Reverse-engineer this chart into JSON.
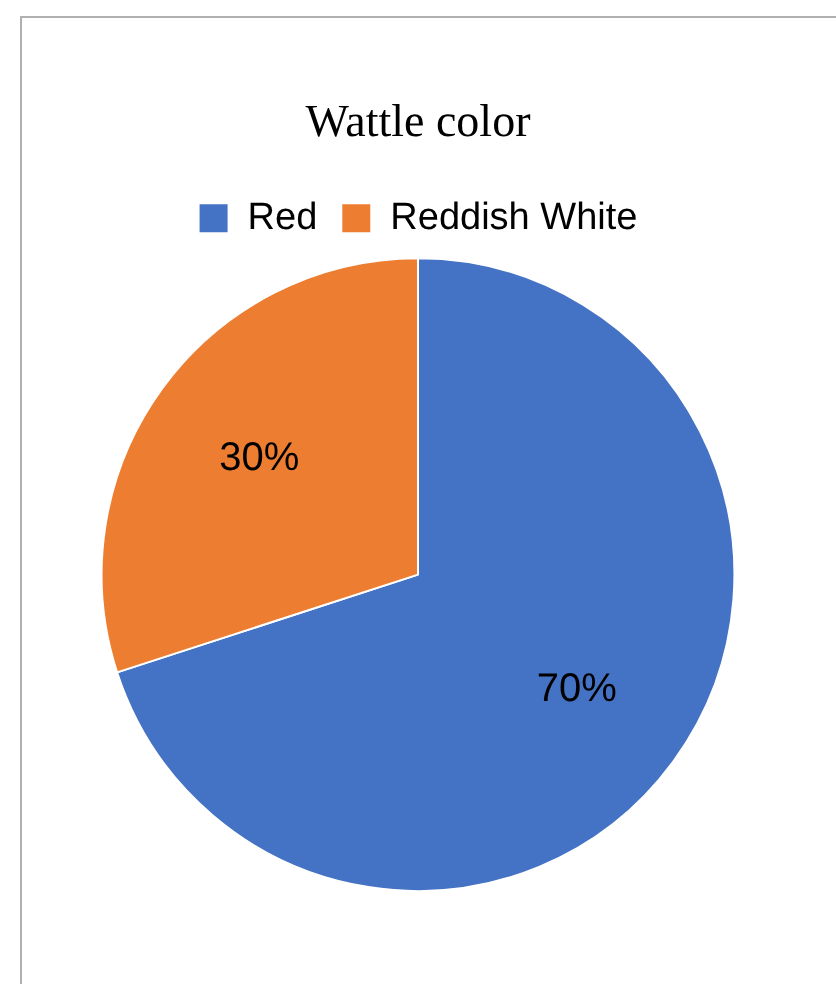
{
  "chart_data": {
    "type": "pie",
    "title": "Wattle color",
    "categories": [
      "Red",
      "Reddish White"
    ],
    "values": [
      70,
      30
    ],
    "colors": [
      "#4472c4",
      "#ed7d31"
    ],
    "value_labels": [
      "70%",
      "30%"
    ],
    "legend": "top"
  }
}
